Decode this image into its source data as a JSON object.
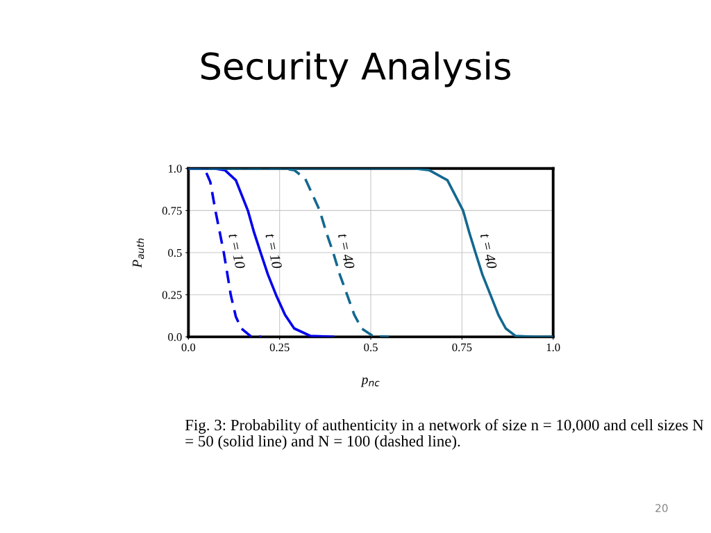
{
  "chart_data": {
    "type": "line",
    "title": "Security Analysis",
    "xlabel": "p$_{nc}$",
    "ylabel": "P$_{auth}$",
    "annotations": [
      "Fig. 3: Probability of authenticity in a network of size n = 10,000 and cell sizes N = 50 (solid line) and N = 100 (dashed line).",
      "20"
    ],
    "series": [
      {
        "name": "t = 10",
        "color": "#0000ee",
        "line_style": "dashed",
        "x": [
          0,
          0.03,
          0.046,
          0.06,
          0.074,
          0.086,
          0.097,
          0.107,
          0.116,
          0.13,
          0.145,
          0.17,
          0.2
        ],
        "values": [
          1,
          1,
          0.99,
          0.92,
          0.75,
          0.62,
          0.5,
          0.37,
          0.25,
          0.12,
          0.05,
          0.005,
          0
        ]
      },
      {
        "name": "t = 10",
        "color": "#0000ee",
        "line_style": "solid",
        "x": [
          0,
          0.07,
          0.1,
          0.13,
          0.163,
          0.18,
          0.198,
          0.218,
          0.24,
          0.265,
          0.29,
          0.335,
          0.4
        ],
        "values": [
          1,
          1,
          0.99,
          0.93,
          0.75,
          0.62,
          0.5,
          0.37,
          0.25,
          0.13,
          0.05,
          0.005,
          0
        ]
      },
      {
        "name": "t = 40",
        "color": "#13688f",
        "line_style": "dashed",
        "x": [
          0,
          0.26,
          0.29,
          0.32,
          0.36,
          0.378,
          0.397,
          0.415,
          0.435,
          0.455,
          0.475,
          0.506,
          0.55
        ],
        "values": [
          1,
          1,
          0.99,
          0.94,
          0.75,
          0.62,
          0.5,
          0.37,
          0.25,
          0.13,
          0.05,
          0.005,
          0
        ]
      },
      {
        "name": "t = 40",
        "color": "#13688f",
        "line_style": "solid",
        "x": [
          0,
          0.62,
          0.66,
          0.71,
          0.753,
          0.77,
          0.787,
          0.806,
          0.828,
          0.85,
          0.87,
          0.897,
          0.95,
          1.0
        ],
        "values": [
          1,
          1,
          0.99,
          0.93,
          0.75,
          0.62,
          0.5,
          0.37,
          0.25,
          0.13,
          0.05,
          0.005,
          0,
          0
        ]
      }
    ],
    "xlim": [
      0,
      1
    ],
    "ylim": [
      0,
      1
    ],
    "xticks": [
      {
        "value": 0,
        "label": "0.0"
      },
      0.25,
      0.5,
      0.75,
      {
        "value": 1,
        "label": "1.0"
      }
    ],
    "yticks": [
      {
        "value": 0,
        "label": "0.0"
      },
      0.25,
      0.5,
      0.75,
      {
        "value": 1,
        "label": "1.0"
      }
    ],
    "grid": true,
    "legend": false
  }
}
